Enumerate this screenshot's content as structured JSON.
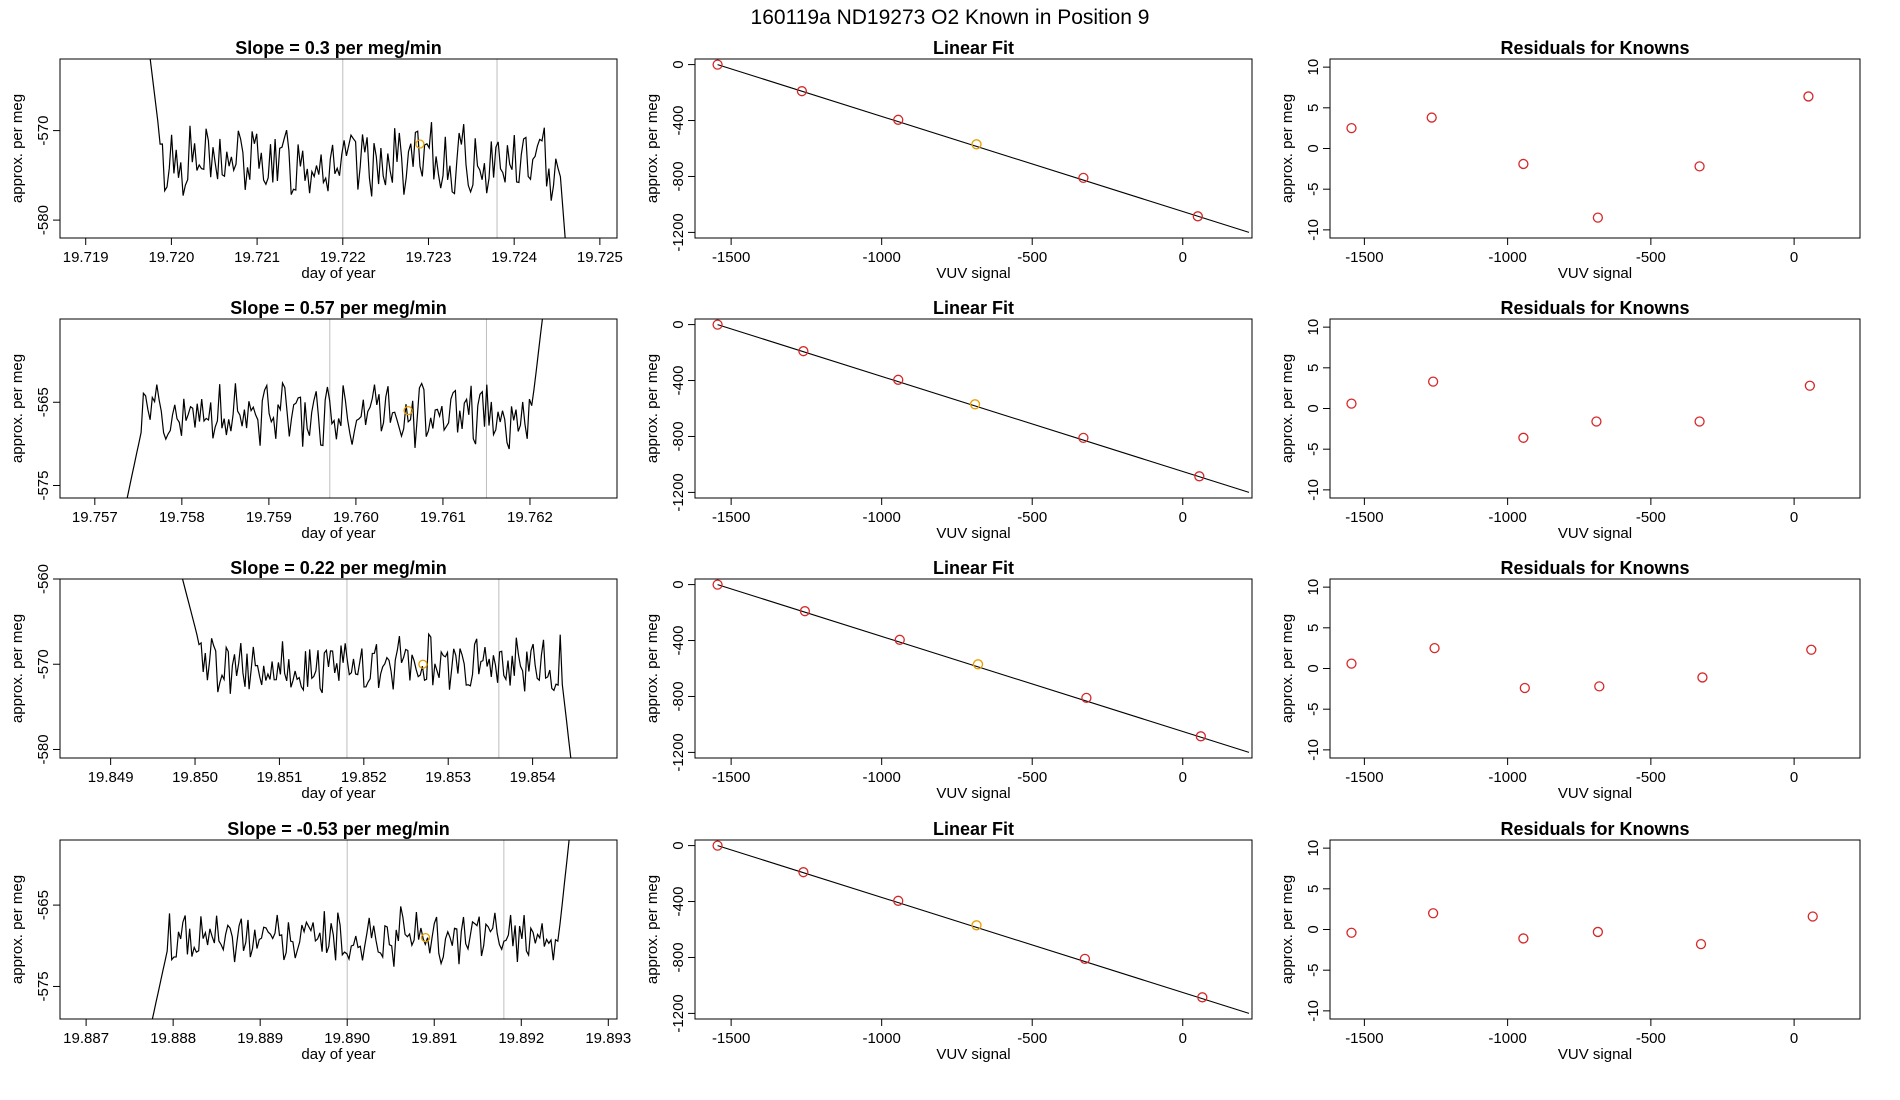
{
  "figure_title": "160119a      ND19273    O2 Known in Position  9",
  "colors": {
    "line": "#000000",
    "known_point": "#e69f00",
    "fit_point": "#d62728",
    "residual_point": "#d62728",
    "ref_line": "#bebebe"
  },
  "chart_data": [
    {
      "panel": "r1-ts",
      "type": "line",
      "title": "Slope =  0.3  per meg/min",
      "xlabel": "day of year",
      "ylabel": "approx. per meg",
      "xlim": [
        19.7187,
        19.7252
      ],
      "ylim": [
        -582,
        -562
      ],
      "xticks": [
        19.719,
        19.72,
        19.721,
        19.722,
        19.723,
        19.724,
        19.725
      ],
      "xtick_labels": [
        "19.719",
        "19.720",
        "19.721",
        "19.722",
        "19.723",
        "19.724",
        "19.725"
      ],
      "yticks": [
        -580,
        -570
      ],
      "ytick_labels": [
        "-580",
        "-570"
      ],
      "vlines": [
        19.722,
        19.7238
      ],
      "series_x_start": 19.7196,
      "series_x_end": 19.7247,
      "series_start": -550,
      "series_end": -595,
      "series_mean": -573.5,
      "series_amp": 3.2,
      "rise_start": -570,
      "rise_end": -573,
      "known": {
        "x": 19.7229,
        "y": -571.5
      }
    },
    {
      "panel": "r1-fit",
      "type": "scatter",
      "title": "Linear Fit",
      "xlabel": "VUV signal",
      "ylabel": "approx. per meg",
      "xlim": [
        -1620,
        230
      ],
      "ylim": [
        -1240,
        40
      ],
      "xticks": [
        -1500,
        -1000,
        -500,
        0
      ],
      "xtick_labels": [
        "-1500",
        "-1000",
        "-500",
        "0"
      ],
      "yticks": [
        0,
        -400,
        -800,
        -1200
      ],
      "ytick_labels": [
        "0",
        "-400",
        "-800",
        "-1200"
      ],
      "x": [
        -1545,
        -1265,
        -945,
        -685,
        -330,
        50
      ],
      "y": [
        0,
        -190,
        -395,
        -570,
        -810,
        -1085
      ],
      "known_index": 3,
      "fit_line": {
        "x": [
          -1545,
          220
        ],
        "y": [
          0,
          -1200
        ]
      }
    },
    {
      "panel": "r1-res",
      "type": "scatter",
      "title": "Residuals for Knowns",
      "xlabel": "VUV signal",
      "ylabel": "approx. per meg",
      "xlim": [
        -1620,
        230
      ],
      "ylim": [
        -11,
        11
      ],
      "xticks": [
        -1500,
        -1000,
        -500,
        0
      ],
      "xtick_labels": [
        "-1500",
        "-1000",
        "-500",
        "0"
      ],
      "yticks": [
        10,
        5,
        0,
        -5,
        -10
      ],
      "ytick_labels": [
        "10",
        "5",
        "0",
        "-5",
        "-10"
      ],
      "x": [
        -1545,
        -1265,
        -945,
        -685,
        -330,
        50
      ],
      "y": [
        2.5,
        3.8,
        -1.9,
        -8.5,
        -2.2,
        6.4
      ]
    },
    {
      "panel": "r2-ts",
      "type": "line",
      "title": "Slope =  0.57  per meg/min",
      "xlabel": "day of year",
      "ylabel": "approx. per meg",
      "xlim": [
        19.7566,
        19.763
      ],
      "ylim": [
        -576.5,
        -555
      ],
      "xticks": [
        19.757,
        19.758,
        19.759,
        19.76,
        19.761,
        19.762
      ],
      "xtick_labels": [
        "19.757",
        "19.758",
        "19.759",
        "19.760",
        "19.761",
        "19.762"
      ],
      "yticks": [
        -575,
        -565
      ],
      "ytick_labels": [
        "-575",
        "-565"
      ],
      "vlines": [
        19.7597,
        19.7615
      ],
      "series_x_start": 19.7573,
      "series_x_end": 19.7622,
      "series_start": -580,
      "series_end": -550,
      "series_mean": -566.5,
      "series_amp": 3.0,
      "rise_start": -568,
      "rise_end": -565,
      "known": {
        "x": 19.7606,
        "y": -566
      }
    },
    {
      "panel": "r2-fit",
      "type": "scatter",
      "title": "Linear Fit",
      "xlabel": "VUV signal",
      "ylabel": "approx. per meg",
      "xlim": [
        -1620,
        230
      ],
      "ylim": [
        -1240,
        40
      ],
      "xticks": [
        -1500,
        -1000,
        -500,
        0
      ],
      "xtick_labels": [
        "-1500",
        "-1000",
        "-500",
        "0"
      ],
      "yticks": [
        0,
        -400,
        -800,
        -1200
      ],
      "ytick_labels": [
        "0",
        "-400",
        "-800",
        "-1200"
      ],
      "x": [
        -1545,
        -1260,
        -945,
        -690,
        -330,
        55
      ],
      "y": [
        0,
        -190,
        -395,
        -570,
        -810,
        -1085
      ],
      "known_index": 3,
      "fit_line": {
        "x": [
          -1545,
          220
        ],
        "y": [
          0,
          -1200
        ]
      }
    },
    {
      "panel": "r2-res",
      "type": "scatter",
      "title": "Residuals for Knowns",
      "xlabel": "VUV signal",
      "ylabel": "approx. per meg",
      "xlim": [
        -1620,
        230
      ],
      "ylim": [
        -11,
        11
      ],
      "xticks": [
        -1500,
        -1000,
        -500,
        0
      ],
      "xtick_labels": [
        "-1500",
        "-1000",
        "-500",
        "0"
      ],
      "yticks": [
        10,
        5,
        0,
        -5,
        -10
      ],
      "ytick_labels": [
        "10",
        "5",
        "0",
        "-5",
        "-10"
      ],
      "x": [
        -1545,
        -1260,
        -945,
        -690,
        -330,
        55
      ],
      "y": [
        0.6,
        3.3,
        -3.6,
        -1.6,
        -1.6,
        2.8
      ]
    },
    {
      "panel": "r3-ts",
      "type": "line",
      "title": "Slope =  0.22  per meg/min",
      "xlabel": "day of year",
      "ylabel": "approx. per meg",
      "xlim": [
        19.8484,
        19.855
      ],
      "ylim": [
        -581,
        -560
      ],
      "xticks": [
        19.849,
        19.85,
        19.851,
        19.852,
        19.853,
        19.854
      ],
      "xtick_labels": [
        "19.849",
        "19.850",
        "19.851",
        "19.852",
        "19.853",
        "19.854"
      ],
      "yticks": [
        -580,
        -570,
        -560
      ],
      "ytick_labels": [
        "-580",
        "-570",
        "-560"
      ],
      "vlines": [
        19.8518,
        19.8536
      ],
      "series_x_start": 19.8498,
      "series_x_end": 19.8545,
      "series_start": -558,
      "series_end": -585,
      "series_mean": -570,
      "series_amp": 2.8,
      "rise_start": -567,
      "rise_end": -571,
      "known": {
        "x": 19.8527,
        "y": -570
      }
    },
    {
      "panel": "r3-fit",
      "type": "scatter",
      "title": "Linear Fit",
      "xlabel": "VUV signal",
      "ylabel": "approx. per meg",
      "xlim": [
        -1620,
        230
      ],
      "ylim": [
        -1240,
        40
      ],
      "xticks": [
        -1500,
        -1000,
        -500,
        0
      ],
      "xtick_labels": [
        "-1500",
        "-1000",
        "-500",
        "0"
      ],
      "yticks": [
        0,
        -400,
        -800,
        -1200
      ],
      "ytick_labels": [
        "0",
        "-400",
        "-800",
        "-1200"
      ],
      "x": [
        -1545,
        -1255,
        -940,
        -680,
        -320,
        60
      ],
      "y": [
        0,
        -190,
        -395,
        -570,
        -810,
        -1085
      ],
      "known_index": 3,
      "fit_line": {
        "x": [
          -1545,
          220
        ],
        "y": [
          0,
          -1200
        ]
      }
    },
    {
      "panel": "r3-res",
      "type": "scatter",
      "title": "Residuals for Knowns",
      "xlabel": "VUV signal",
      "ylabel": "approx. per meg",
      "xlim": [
        -1620,
        230
      ],
      "ylim": [
        -11,
        11
      ],
      "xticks": [
        -1500,
        -1000,
        -500,
        0
      ],
      "xtick_labels": [
        "-1500",
        "-1000",
        "-500",
        "0"
      ],
      "yticks": [
        10,
        5,
        0,
        -5,
        -10
      ],
      "ytick_labels": [
        "10",
        "5",
        "0",
        "-5",
        "-10"
      ],
      "x": [
        -1545,
        -1255,
        -940,
        -680,
        -320,
        60
      ],
      "y": [
        0.6,
        2.5,
        -2.4,
        -2.2,
        -1.1,
        2.3
      ]
    },
    {
      "panel": "r4-ts",
      "type": "line",
      "title": "Slope =  -0.53  per meg/min",
      "xlabel": "day of year",
      "ylabel": "approx. per meg",
      "xlim": [
        19.8867,
        19.8931
      ],
      "ylim": [
        -579,
        -557
      ],
      "xticks": [
        19.887,
        19.888,
        19.889,
        19.89,
        19.891,
        19.892,
        19.893
      ],
      "xtick_labels": [
        "19.887",
        "19.888",
        "19.889",
        "19.890",
        "19.891",
        "19.892",
        "19.893"
      ],
      "yticks": [
        -575,
        -565
      ],
      "ytick_labels": [
        "-575",
        "-565"
      ],
      "vlines": [
        19.89,
        19.8918
      ],
      "series_x_start": 19.8877,
      "series_x_end": 19.8926,
      "series_start": -582,
      "series_end": -552,
      "series_mean": -569,
      "series_amp": 2.8,
      "rise_start": -570,
      "rise_end": -569,
      "known": {
        "x": 19.8909,
        "y": -569
      }
    },
    {
      "panel": "r4-fit",
      "type": "scatter",
      "title": "Linear Fit",
      "xlabel": "VUV signal",
      "ylabel": "approx. per meg",
      "xlim": [
        -1620,
        230
      ],
      "ylim": [
        -1240,
        40
      ],
      "xticks": [
        -1500,
        -1000,
        -500,
        0
      ],
      "xtick_labels": [
        "-1500",
        "-1000",
        "-500",
        "0"
      ],
      "yticks": [
        0,
        -400,
        -800,
        -1200
      ],
      "ytick_labels": [
        "0",
        "-400",
        "-800",
        "-1200"
      ],
      "x": [
        -1545,
        -1260,
        -945,
        -685,
        -325,
        65
      ],
      "y": [
        0,
        -190,
        -395,
        -570,
        -810,
        -1085
      ],
      "known_index": 3,
      "fit_line": {
        "x": [
          -1545,
          220
        ],
        "y": [
          0,
          -1200
        ]
      }
    },
    {
      "panel": "r4-res",
      "type": "scatter",
      "title": "Residuals for Knowns",
      "xlabel": "VUV signal",
      "ylabel": "approx. per meg",
      "xlim": [
        -1620,
        230
      ],
      "ylim": [
        -11,
        11
      ],
      "xticks": [
        -1500,
        -1000,
        -500,
        0
      ],
      "xtick_labels": [
        "-1500",
        "-1000",
        "-500",
        "0"
      ],
      "yticks": [
        10,
        5,
        0,
        -5,
        -10
      ],
      "ytick_labels": [
        "10",
        "5",
        "0",
        "-5",
        "-10"
      ],
      "x": [
        -1545,
        -1260,
        -945,
        -685,
        -325,
        65
      ],
      "y": [
        -0.4,
        2.0,
        -1.1,
        -0.3,
        -1.8,
        1.6
      ]
    }
  ]
}
